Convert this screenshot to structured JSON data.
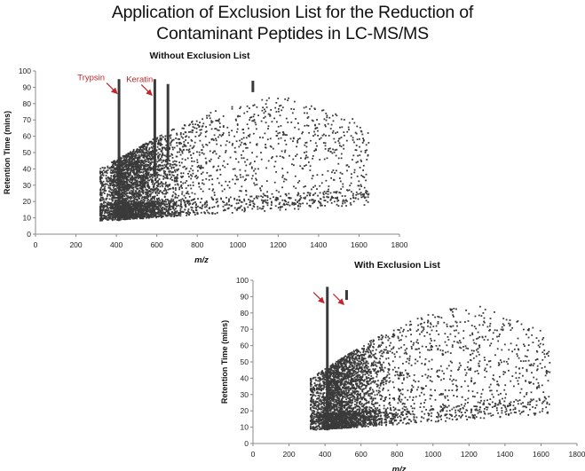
{
  "title": {
    "line1": "Application of Exclusion List for the Reduction of",
    "line2": "Contaminant Peptides in LC-MS/MS"
  },
  "colors": {
    "points": "#3a3a3a",
    "arrow": "#c0262b",
    "axis": "#888888"
  },
  "chart_data": [
    {
      "type": "scatter",
      "title": "Without Exclusion List",
      "xlabel": "m/z",
      "ylabel": "Retention Time (mins)",
      "xlim": [
        0,
        1800
      ],
      "ylim": [
        0,
        100
      ],
      "xticks": [
        0,
        200,
        400,
        600,
        800,
        1000,
        1200,
        1400,
        1600,
        1800
      ],
      "yticks": [
        0,
        10,
        20,
        30,
        40,
        50,
        60,
        70,
        80,
        90,
        100
      ],
      "cloud": {
        "x_min": 320,
        "x_max": 1650,
        "y_min": 8,
        "y_max": 78,
        "point_count": 4500
      },
      "contaminant_lines": [
        {
          "x": 413,
          "y_from": 8,
          "y_to": 95
        },
        {
          "x": 590,
          "y_from": 35,
          "y_to": 95
        },
        {
          "x": 655,
          "y_from": 45,
          "y_to": 92
        },
        {
          "x": 1075,
          "y_from": 87,
          "y_to": 94
        }
      ],
      "annotations": [
        {
          "text": "Trypsin",
          "target_x": 413,
          "target_y": 85
        },
        {
          "text": "Keratin",
          "target_x": 585,
          "target_y": 84
        }
      ]
    },
    {
      "type": "scatter",
      "title": "With Exclusion List",
      "xlabel": "m/z",
      "ylabel": "Retention Time (mins)",
      "xlim": [
        0,
        1800
      ],
      "ylim": [
        0,
        100
      ],
      "xticks": [
        0,
        200,
        400,
        600,
        800,
        1000,
        1200,
        1400,
        1600,
        1800
      ],
      "yticks": [
        0,
        10,
        20,
        30,
        40,
        50,
        60,
        70,
        80,
        90,
        100
      ],
      "cloud": {
        "x_min": 320,
        "x_max": 1650,
        "y_min": 8,
        "y_max": 78,
        "point_count": 4200
      },
      "contaminant_lines": [
        {
          "x": 413,
          "y_from": 8,
          "y_to": 96
        },
        {
          "x": 520,
          "y_from": 88,
          "y_to": 94
        }
      ],
      "annotations": [
        {
          "text": "",
          "target_x": 405,
          "target_y": 85
        },
        {
          "text": "",
          "target_x": 515,
          "target_y": 84
        }
      ]
    }
  ]
}
